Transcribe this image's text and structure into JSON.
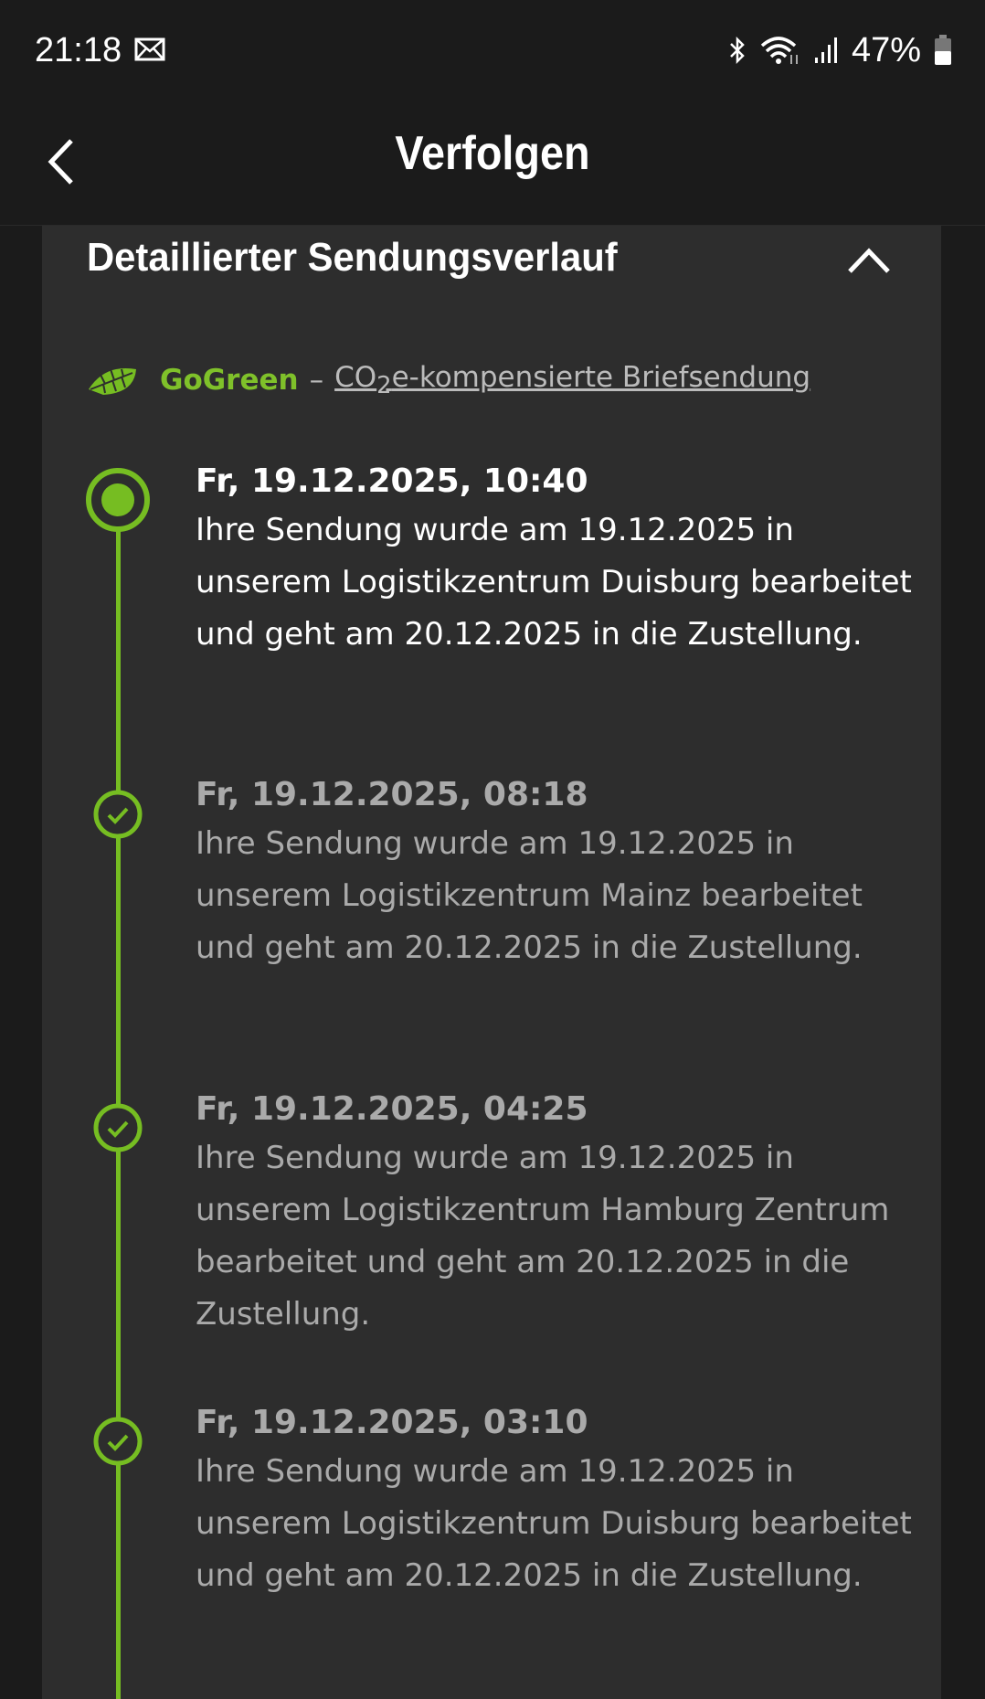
{
  "status_bar": {
    "time": "21:18",
    "battery": "47%",
    "icons": [
      "mail-icon",
      "bluetooth-icon",
      "wifi-icon",
      "signal-icon",
      "battery-icon"
    ]
  },
  "header": {
    "title": "Verfolgen",
    "back_icon": "chevron-left-icon"
  },
  "section": {
    "title": "Detaillierter Sendungsverlauf",
    "toggle_icon": "chevron-up-icon",
    "gogreen": {
      "brand": "GoGreen",
      "dash": "–",
      "link_pre": "CO",
      "link_sub": "2",
      "link_post": "e-kompensierte Briefsendung"
    }
  },
  "accent": "#76bd22",
  "events": [
    {
      "date": "Fr, 19.12.2025, 10:40",
      "text": "Ihre Sendung wurde am 19.12.2025 in unserem Logistikzentrum Duisburg bearbeitet und geht am 20.12.2025 in die Zustellung.",
      "state": "current"
    },
    {
      "date": "Fr, 19.12.2025, 08:18",
      "text": "Ihre Sendung wurde am 19.12.2025 in unserem Logistikzentrum Mainz bearbeitet und geht am 20.12.2025 in die Zustellung.",
      "state": "done"
    },
    {
      "date": "Fr, 19.12.2025, 04:25",
      "text": "Ihre Sendung wurde am 19.12.2025 in unserem Logistikzentrum Hamburg Zentrum bearbeitet und geht am 20.12.2025 in die Zustellung.",
      "state": "done"
    },
    {
      "date": "Fr, 19.12.2025, 03:10",
      "text": "Ihre Sendung wurde am 19.12.2025 in unserem Logistikzentrum Duisburg bearbeitet und geht am 20.12.2025 in die Zustellung.",
      "state": "done"
    }
  ]
}
